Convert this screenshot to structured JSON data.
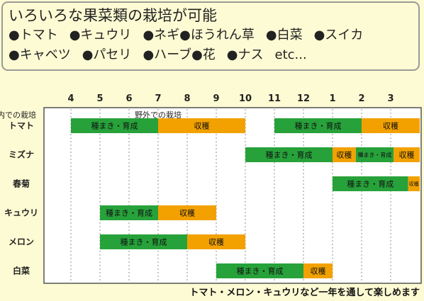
{
  "info": {
    "title": "いろいろな果菜類の栽培が可能",
    "lines": [
      [
        "●トマト",
        "●キュウリ",
        "●ネギ●ほうれん草",
        "●白菜",
        "●スイカ"
      ],
      [
        "●キャベツ",
        "●パセリ",
        "●ハーブ●花",
        "●ナス",
        "etc..."
      ]
    ]
  },
  "chart_data": {
    "type": "gantt",
    "months": [
      "4",
      "5",
      "6",
      "7",
      "8",
      "9",
      "10",
      "11",
      "12",
      "1",
      "2",
      "3"
    ],
    "section_labels": [
      {
        "text": "野外での栽培",
        "month": 7
      },
      {
        "text": "室内での栽培",
        "month": 2
      }
    ],
    "colors": {
      "sow": "#27a23a",
      "harvest": "#f2a100",
      "grid": "#8f8f8f",
      "chart_bg": "#ffffff"
    },
    "crops": [
      {
        "name": "トマト",
        "segments": [
          {
            "label": "種まき・育成",
            "kind": "sow",
            "start": 4,
            "end": 7
          },
          {
            "label": "収穫",
            "kind": "harvest",
            "start": 7,
            "end": 10
          },
          {
            "label": "種まき・育成",
            "kind": "sow",
            "start": 11,
            "end": 14
          },
          {
            "label": "収穫",
            "kind": "harvest",
            "start": 14,
            "end": 16
          }
        ]
      },
      {
        "name": "ミズナ",
        "segments": [
          {
            "label": "種まき・育成",
            "kind": "sow",
            "start": 10,
            "end": 13
          },
          {
            "label": "収穫",
            "kind": "harvest",
            "start": 13,
            "end": 13.8
          },
          {
            "label": "種まき・育成",
            "kind": "sow",
            "start": 13.8,
            "end": 15.1
          },
          {
            "label": "収穫",
            "kind": "harvest",
            "start": 15.1,
            "end": 16
          }
        ]
      },
      {
        "name": "春菊",
        "segments": [
          {
            "label": "種まき・育成",
            "kind": "sow",
            "start": 13,
            "end": 15.6
          },
          {
            "label": "収穫",
            "kind": "harvest",
            "start": 15.6,
            "end": 16
          }
        ]
      },
      {
        "name": "キュウリ",
        "segments": [
          {
            "label": "種まき・育成",
            "kind": "sow",
            "start": 5,
            "end": 7
          },
          {
            "label": "収穫",
            "kind": "harvest",
            "start": 7,
            "end": 9
          }
        ]
      },
      {
        "name": "メロン",
        "segments": [
          {
            "label": "種まき・育成",
            "kind": "sow",
            "start": 5,
            "end": 8
          },
          {
            "label": "収穫",
            "kind": "harvest",
            "start": 8,
            "end": 10
          }
        ]
      },
      {
        "name": "白菜",
        "segments": [
          {
            "label": "種まき・育成",
            "kind": "sow",
            "start": 9,
            "end": 12
          },
          {
            "label": "収穫",
            "kind": "harvest",
            "start": 12,
            "end": 13
          }
        ]
      }
    ],
    "footer": "トマト・メロン・キュウリなど一年を通して楽しめます"
  }
}
